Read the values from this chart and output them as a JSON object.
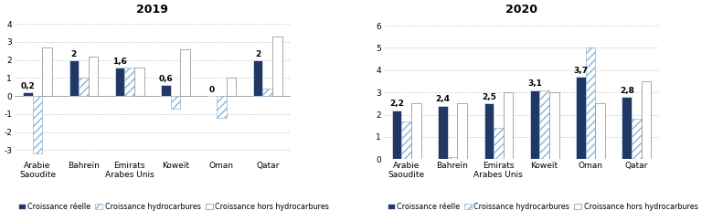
{
  "title_2019": "2019",
  "title_2020": "2020",
  "categories": [
    "Arabie\nSaoudite",
    "Bahreïn",
    "Emirats\nArabes Unis",
    "Koweït",
    "Oman",
    "Qatar"
  ],
  "data_2019": {
    "reel": [
      0.2,
      2.0,
      1.6,
      0.6,
      0.0,
      2.0
    ],
    "hydrocarbures": [
      -3.2,
      1.0,
      1.6,
      -0.7,
      -1.2,
      0.4
    ],
    "hors_hydro": [
      2.7,
      2.2,
      1.6,
      2.6,
      1.0,
      3.3
    ]
  },
  "data_2020": {
    "reel": [
      2.2,
      2.4,
      2.5,
      3.1,
      3.7,
      2.8
    ],
    "hydrocarbures": [
      1.7,
      0.1,
      1.4,
      3.1,
      5.0,
      1.8
    ],
    "hors_hydro": [
      2.5,
      2.5,
      3.0,
      3.0,
      2.5,
      3.5
    ]
  },
  "labels_2019": [
    "0,2",
    "2",
    "1,6",
    "0,6",
    "0",
    "2"
  ],
  "labels_2020": [
    "2,2",
    "2,4",
    "2,5",
    "3,1",
    "3,7",
    "2,8"
  ],
  "color_reel": "#1f3864",
  "color_hydro": "#bdd7ee",
  "color_hors_light": "#b0b0b0",
  "ylim_2019": [
    -3.5,
    4.4
  ],
  "ylim_2020": [
    0,
    6.4
  ],
  "yticks_2019": [
    -3,
    -2,
    -1,
    0,
    1,
    2,
    3,
    4
  ],
  "yticks_2020": [
    0,
    1,
    2,
    3,
    4,
    5,
    6
  ],
  "legend_reel": "Croissance réelle",
  "legend_hydro": "Croissance hydrocarbures",
  "legend_hors": "Croissance hors hydrocarbures",
  "bar_width": 0.21,
  "title_fontsize": 9,
  "tick_fontsize": 6.5,
  "label_fontsize": 6.5,
  "legend_fontsize": 5.8
}
